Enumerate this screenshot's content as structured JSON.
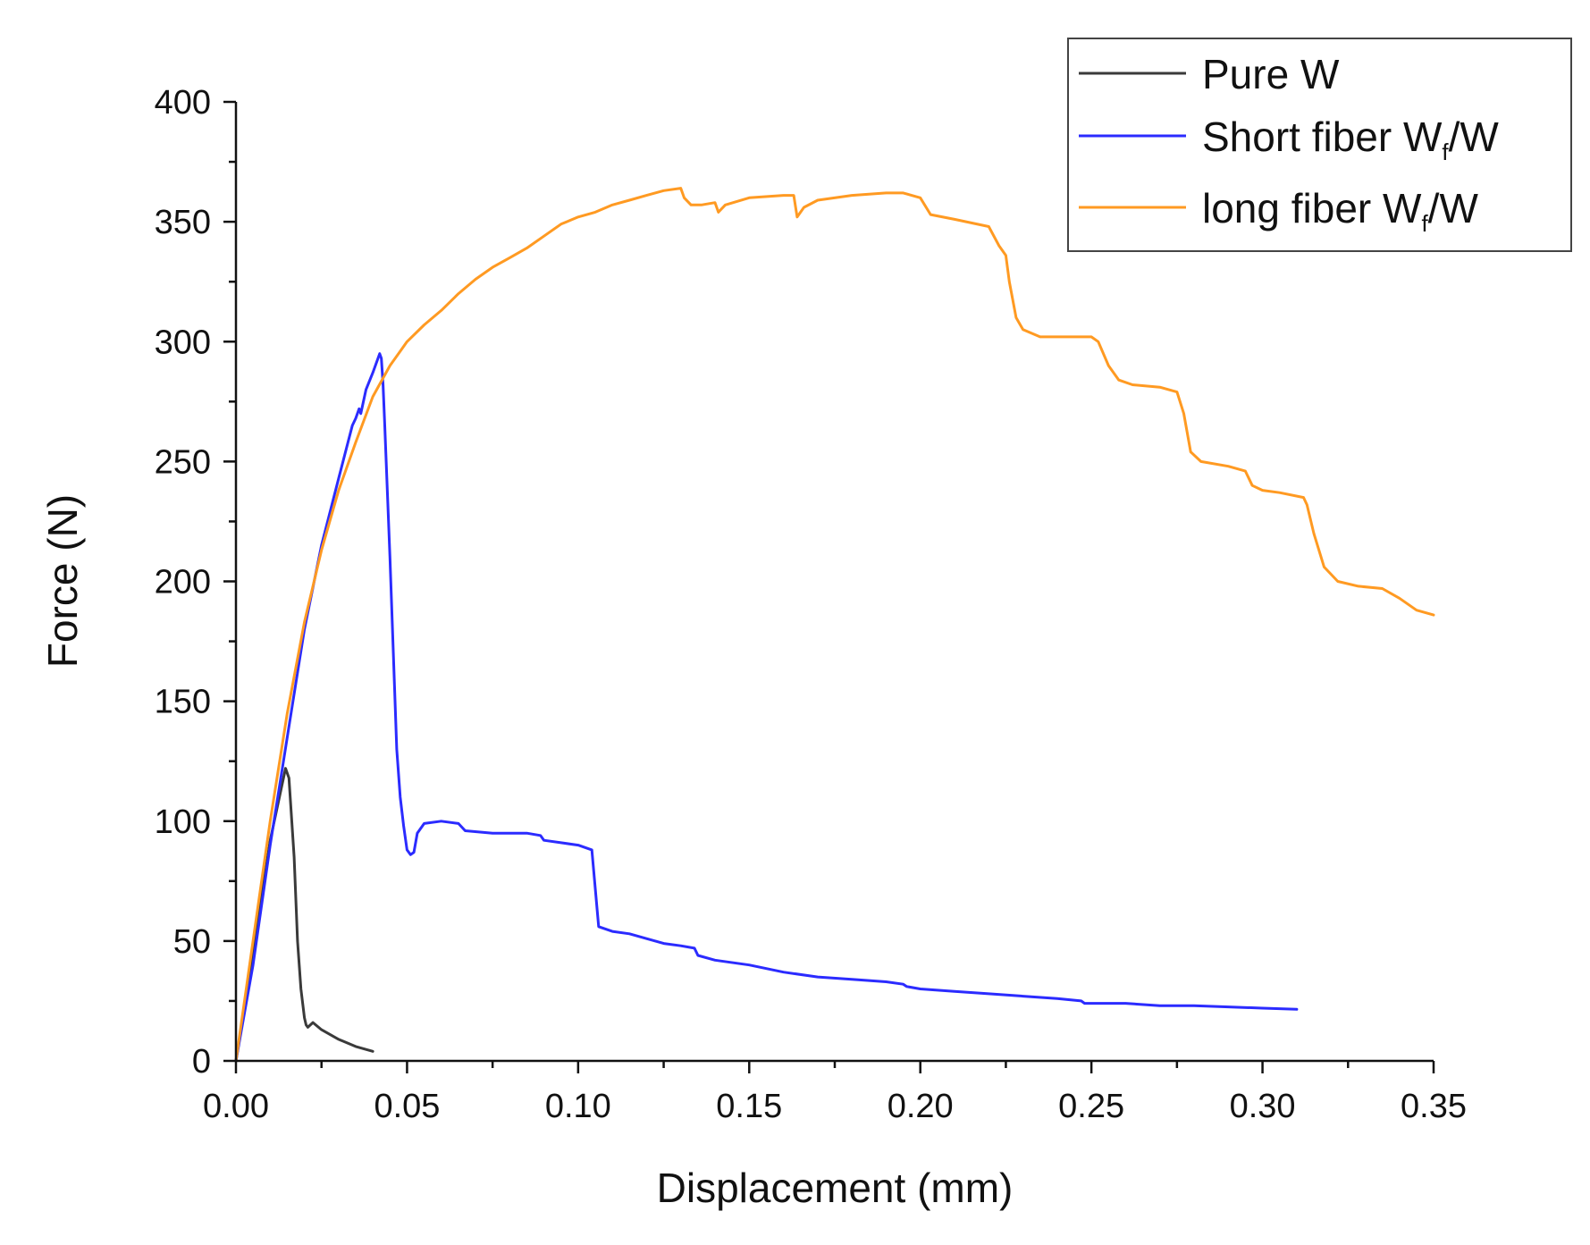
{
  "chart_data": {
    "type": "line",
    "title": "",
    "xlabel": "Displacement (mm)",
    "ylabel": "Force (N)",
    "xlim": [
      0,
      0.35
    ],
    "ylim": [
      0,
      400
    ],
    "xticks": [
      "0.00",
      "0.05",
      "0.10",
      "0.15",
      "0.20",
      "0.25",
      "0.30",
      "0.35"
    ],
    "yticks": [
      "0",
      "50",
      "100",
      "150",
      "200",
      "250",
      "300",
      "350",
      "400"
    ],
    "legend_position": "top-right",
    "legend": [
      {
        "main": "Pure W",
        "sub": "",
        "suffix": ""
      },
      {
        "main": "Short fiber W",
        "sub": "f",
        "suffix": "/W"
      },
      {
        "main": "long fiber W",
        "sub": "f",
        "suffix": "/W"
      }
    ],
    "series": [
      {
        "name": "Pure W",
        "color": "#3a3a3a",
        "points": [
          [
            0,
            0
          ],
          [
            0.005,
            45
          ],
          [
            0.01,
            92
          ],
          [
            0.0145,
            122
          ],
          [
            0.0155,
            118
          ],
          [
            0.017,
            85
          ],
          [
            0.018,
            50
          ],
          [
            0.019,
            30
          ],
          [
            0.02,
            18
          ],
          [
            0.0205,
            15
          ],
          [
            0.021,
            14
          ],
          [
            0.0225,
            16
          ],
          [
            0.025,
            13
          ],
          [
            0.03,
            9
          ],
          [
            0.035,
            6
          ],
          [
            0.04,
            4
          ]
        ]
      },
      {
        "name": "Short fiber W_f/W",
        "color": "#2b2bff",
        "points": [
          [
            0,
            0
          ],
          [
            0.005,
            40
          ],
          [
            0.01,
            90
          ],
          [
            0.015,
            135
          ],
          [
            0.02,
            180
          ],
          [
            0.025,
            215
          ],
          [
            0.03,
            243
          ],
          [
            0.034,
            265
          ],
          [
            0.035,
            268
          ],
          [
            0.036,
            272
          ],
          [
            0.0365,
            270
          ],
          [
            0.038,
            280
          ],
          [
            0.04,
            287
          ],
          [
            0.042,
            295
          ],
          [
            0.0425,
            293
          ],
          [
            0.043,
            282
          ],
          [
            0.0435,
            265
          ],
          [
            0.045,
            210
          ],
          [
            0.046,
            170
          ],
          [
            0.047,
            130
          ],
          [
            0.048,
            110
          ],
          [
            0.049,
            98
          ],
          [
            0.05,
            88
          ],
          [
            0.051,
            86
          ],
          [
            0.052,
            87
          ],
          [
            0.053,
            95
          ],
          [
            0.055,
            99
          ],
          [
            0.06,
            100
          ],
          [
            0.065,
            99
          ],
          [
            0.067,
            96
          ],
          [
            0.075,
            95
          ],
          [
            0.085,
            95
          ],
          [
            0.089,
            94
          ],
          [
            0.09,
            92
          ],
          [
            0.095,
            91
          ],
          [
            0.1,
            90
          ],
          [
            0.104,
            88
          ],
          [
            0.105,
            72
          ],
          [
            0.106,
            56
          ],
          [
            0.11,
            54
          ],
          [
            0.115,
            53
          ],
          [
            0.12,
            51
          ],
          [
            0.125,
            49
          ],
          [
            0.13,
            48
          ],
          [
            0.134,
            47
          ],
          [
            0.135,
            44
          ],
          [
            0.14,
            42
          ],
          [
            0.15,
            40
          ],
          [
            0.16,
            37
          ],
          [
            0.17,
            35
          ],
          [
            0.18,
            34
          ],
          [
            0.19,
            33
          ],
          [
            0.195,
            32
          ],
          [
            0.196,
            31
          ],
          [
            0.2,
            30
          ],
          [
            0.21,
            29
          ],
          [
            0.22,
            28
          ],
          [
            0.23,
            27
          ],
          [
            0.24,
            26
          ],
          [
            0.247,
            25
          ],
          [
            0.248,
            24
          ],
          [
            0.26,
            24
          ],
          [
            0.27,
            23
          ],
          [
            0.28,
            23
          ],
          [
            0.29,
            22.5
          ],
          [
            0.3,
            22
          ],
          [
            0.31,
            21.5
          ]
        ]
      },
      {
        "name": "long fiber W_f/W",
        "color": "#ff9a22",
        "points": [
          [
            0,
            0
          ],
          [
            0.005,
            50
          ],
          [
            0.01,
            100
          ],
          [
            0.015,
            145
          ],
          [
            0.02,
            183
          ],
          [
            0.025,
            213
          ],
          [
            0.03,
            238
          ],
          [
            0.035,
            258
          ],
          [
            0.04,
            277
          ],
          [
            0.045,
            290
          ],
          [
            0.048,
            296
          ],
          [
            0.05,
            300
          ],
          [
            0.055,
            307
          ],
          [
            0.06,
            313
          ],
          [
            0.065,
            320
          ],
          [
            0.07,
            326
          ],
          [
            0.075,
            331
          ],
          [
            0.08,
            335
          ],
          [
            0.085,
            339
          ],
          [
            0.09,
            344
          ],
          [
            0.095,
            349
          ],
          [
            0.1,
            352
          ],
          [
            0.105,
            354
          ],
          [
            0.11,
            357
          ],
          [
            0.115,
            359
          ],
          [
            0.12,
            361
          ],
          [
            0.125,
            363
          ],
          [
            0.13,
            364
          ],
          [
            0.131,
            360
          ],
          [
            0.133,
            357
          ],
          [
            0.136,
            357
          ],
          [
            0.14,
            358
          ],
          [
            0.141,
            354
          ],
          [
            0.143,
            357
          ],
          [
            0.15,
            360
          ],
          [
            0.16,
            361
          ],
          [
            0.163,
            361
          ],
          [
            0.164,
            352
          ],
          [
            0.166,
            356
          ],
          [
            0.17,
            359
          ],
          [
            0.18,
            361
          ],
          [
            0.19,
            362
          ],
          [
            0.195,
            362
          ],
          [
            0.2,
            360
          ],
          [
            0.203,
            353
          ],
          [
            0.21,
            351
          ],
          [
            0.22,
            348
          ],
          [
            0.223,
            340
          ],
          [
            0.225,
            336
          ],
          [
            0.226,
            325
          ],
          [
            0.228,
            310
          ],
          [
            0.23,
            305
          ],
          [
            0.235,
            302
          ],
          [
            0.24,
            302
          ],
          [
            0.25,
            302
          ],
          [
            0.252,
            300
          ],
          [
            0.255,
            290
          ],
          [
            0.258,
            284
          ],
          [
            0.262,
            282
          ],
          [
            0.27,
            281
          ],
          [
            0.275,
            279
          ],
          [
            0.277,
            270
          ],
          [
            0.279,
            254
          ],
          [
            0.282,
            250
          ],
          [
            0.29,
            248
          ],
          [
            0.295,
            246
          ],
          [
            0.297,
            240
          ],
          [
            0.3,
            238
          ],
          [
            0.305,
            237
          ],
          [
            0.312,
            235
          ],
          [
            0.313,
            232
          ],
          [
            0.315,
            220
          ],
          [
            0.318,
            206
          ],
          [
            0.322,
            200
          ],
          [
            0.328,
            198
          ],
          [
            0.335,
            197
          ],
          [
            0.34,
            193
          ],
          [
            0.345,
            188
          ],
          [
            0.35,
            186
          ]
        ]
      }
    ]
  }
}
